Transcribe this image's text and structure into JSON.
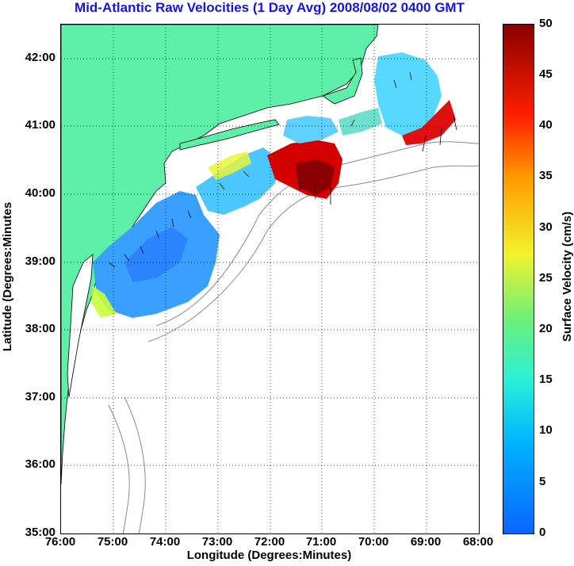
{
  "title": "Mid-Atlantic Raw Velocities (1 Day Avg) 2008/08/02 0400 GMT",
  "map": {
    "xlabel": "Longitude (Degrees:Minutes)",
    "ylabel": "Latitude (Degrees:Minutes",
    "lon_ticks": [
      "76:00",
      "75:00",
      "74:00",
      "73:00",
      "72:00",
      "71:00",
      "70:00",
      "69:00",
      "68:00"
    ],
    "lat_ticks": [
      "42:00",
      "41:00",
      "40:00",
      "39:00",
      "38:00",
      "37:00",
      "36:00",
      "35:00"
    ],
    "lon_range": [
      -76,
      -68
    ],
    "lat_range": [
      35,
      42.5
    ],
    "land_color": "#5ef0a8",
    "grid": "dotted"
  },
  "colorbar": {
    "label": "Surface Velocity (cm/s)",
    "ticks": [
      "50",
      "45",
      "40",
      "35",
      "30",
      "25",
      "20",
      "15",
      "10",
      "5",
      "0"
    ],
    "range": [
      0,
      50
    ],
    "colormap": "jet"
  }
}
